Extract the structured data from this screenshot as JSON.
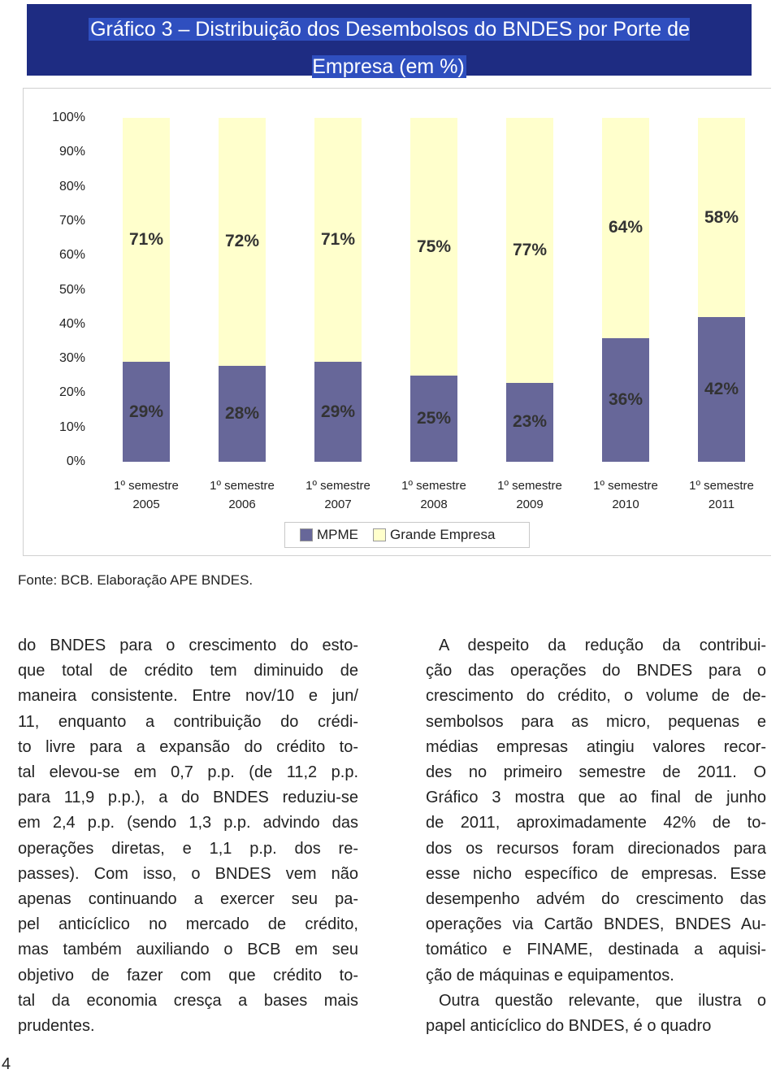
{
  "header": {
    "title": "Gráfico 3 – Distribuição dos Desembolsos do BNDES por Porte de Empresa (em %)"
  },
  "chart_data": {
    "type": "bar",
    "stacked": true,
    "categories": [
      "1º semestre 2005",
      "1º semestre 2006",
      "1º semestre 2007",
      "1º semestre 2008",
      "1º semestre 2009",
      "1º semestre 2010",
      "1º semestre 2011"
    ],
    "series": [
      {
        "name": "MPME",
        "color": "#676799",
        "values": [
          29,
          28,
          29,
          25,
          23,
          36,
          42
        ],
        "value_labels": [
          "29%",
          "28%",
          "29%",
          "25%",
          "23%",
          "36%",
          "42%"
        ]
      },
      {
        "name": "Grande Empresa",
        "color": "#ffffcc",
        "values": [
          71,
          72,
          71,
          75,
          77,
          64,
          58
        ],
        "value_labels": [
          "71%",
          "72%",
          "71%",
          "75%",
          "77%",
          "64%",
          "58%"
        ]
      }
    ],
    "ylim": [
      0,
      100
    ],
    "yticks": [
      {
        "value": 0,
        "label": "0%"
      },
      {
        "value": 10,
        "label": "10%"
      },
      {
        "value": 20,
        "label": "20%"
      },
      {
        "value": 30,
        "label": "30%"
      },
      {
        "value": 40,
        "label": "40%"
      },
      {
        "value": 50,
        "label": "50%"
      },
      {
        "value": 60,
        "label": "60%"
      },
      {
        "value": 70,
        "label": "70%"
      },
      {
        "value": 80,
        "label": "80%"
      },
      {
        "value": 90,
        "label": "90%"
      },
      {
        "value": 100,
        "label": "100%"
      }
    ]
  },
  "source": "Fonte: BCB. Elaboração APE BNDES.",
  "left_column": {
    "paragraphs": [
      [
        "do BNDES para o crescimento do esto-",
        "que total de crédito tem diminuido de",
        "maneira consistente. Entre nov/10 e jun/",
        "11, enquanto a contribuição do crédi-",
        "to livre para a expansão do crédito to-",
        "tal elevou-se em 0,7 p.p. (de 11,2 p.p.",
        "para 11,9 p.p.), a do BNDES reduziu-se",
        "em 2,4 p.p. (sendo 1,3 p.p. advindo das",
        "operações diretas, e 1,1 p.p. dos re-",
        "passes). Com isso, o BNDES vem não",
        "apenas continuando a exercer seu pa-",
        "pel anticíclico no mercado de crédito,",
        "mas também auxiliando o BCB em seu",
        "objetivo de fazer com que crédito to-",
        "tal da economia cresça a bases mais",
        "prudentes."
      ]
    ]
  },
  "right_column": {
    "paragraphs": [
      [
        "A despeito da redução da contribui-",
        "ção das operações do BNDES para o",
        "crescimento do crédito, o volume de de-",
        "sembolsos para as micro, pequenas e",
        "médias empresas atingiu valores recor-",
        "des no primeiro semestre de 2011. O",
        "Gráfico 3 mostra que ao final de junho",
        "de 2011, aproximadamente 42% de to-",
        "dos os recursos foram direcionados para",
        "esse nicho específico de empresas. Esse",
        "desempenho advém do crescimento das",
        "operações via Cartão BNDES, BNDES Au-",
        "tomático e FINAME, destinada a aquisi-",
        "ção de máquinas e equipamentos."
      ],
      [
        "Outra questão relevante, que ilustra o",
        "papel anticíclico do BNDES, é o quadro"
      ]
    ]
  },
  "page_number": "4"
}
